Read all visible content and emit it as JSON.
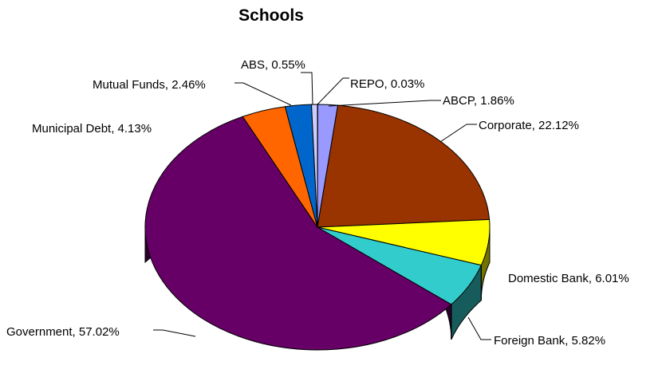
{
  "chart_data": {
    "type": "pie",
    "title": "Schools",
    "three_d": true,
    "slices": [
      {
        "label": "REPO, 0.03%",
        "name": "REPO",
        "value": 0.03,
        "color": "#D9D9F3"
      },
      {
        "label": "ABCP, 1.86%",
        "name": "ABCP",
        "value": 1.86,
        "color": "#9999FF"
      },
      {
        "label": "Corporate, 22.12%",
        "name": "Corporate",
        "value": 22.12,
        "color": "#993300"
      },
      {
        "label": "Domestic Bank, 6.01%",
        "name": "Domestic Bank",
        "value": 6.01,
        "color": "#FFFF00"
      },
      {
        "label": "Foreign Bank, 5.82%",
        "name": "Foreign Bank",
        "value": 5.82,
        "color": "#33CCCC"
      },
      {
        "label": "Government, 57.02%",
        "name": "Government",
        "value": 57.02,
        "color": "#660066"
      },
      {
        "label": "Municipal Debt, 4.13%",
        "name": "Municipal Debt",
        "value": 4.13,
        "color": "#FF6600"
      },
      {
        "label": "Mutual Funds, 2.46%",
        "name": "Mutual Funds",
        "value": 2.46,
        "color": "#0066CC"
      },
      {
        "label": "ABS, 0.55%",
        "name": "ABS",
        "value": 0.55,
        "color": "#CCCCFF"
      }
    ]
  }
}
